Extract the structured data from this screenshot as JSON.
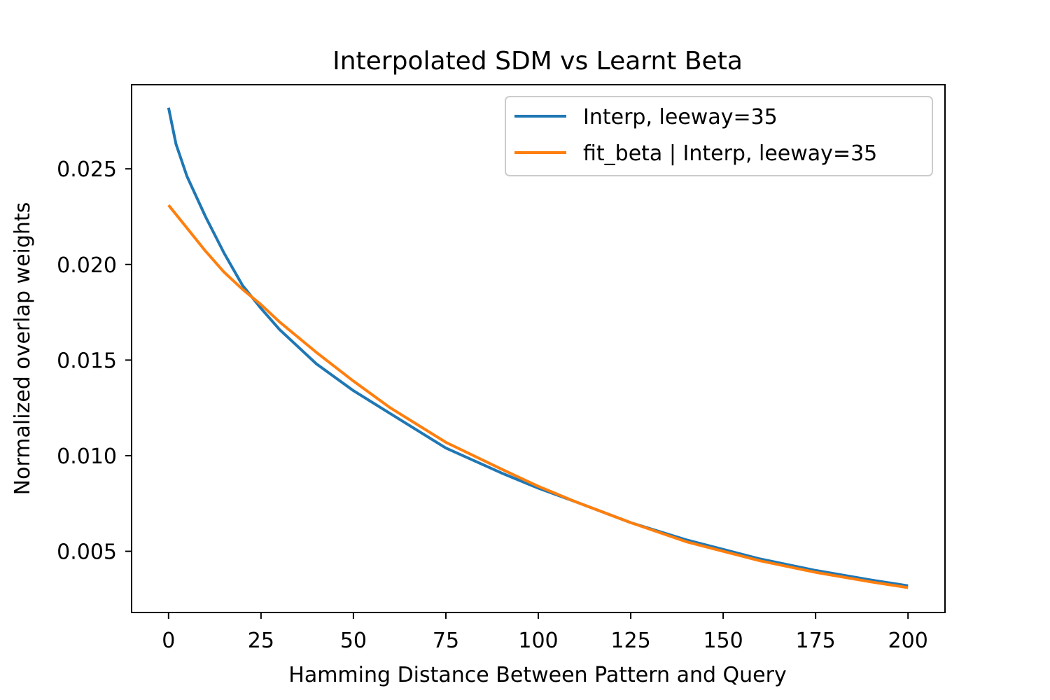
{
  "chart_data": {
    "type": "line",
    "title": "Interpolated SDM vs Learnt Beta",
    "xlabel": "Hamming Distance Between Pattern and Query",
    "ylabel": "Normalized overlap weights",
    "xlim": [
      -10,
      210
    ],
    "ylim": [
      0.0018,
      0.0294
    ],
    "xticks": [
      0,
      25,
      50,
      75,
      100,
      125,
      150,
      175,
      200
    ],
    "xtick_labels": [
      "0",
      "25",
      "50",
      "75",
      "100",
      "125",
      "150",
      "175",
      "200"
    ],
    "yticks": [
      0.005,
      0.01,
      0.015,
      0.02,
      0.025
    ],
    "ytick_labels": [
      "0.005",
      "0.010",
      "0.015",
      "0.020",
      "0.025"
    ],
    "grid": false,
    "legend_position": "upper right",
    "series": [
      {
        "name": "Interp, leeway=35",
        "color": "#1f77b4",
        "x": [
          0,
          2,
          5,
          10,
          15,
          20,
          25,
          30,
          40,
          50,
          60,
          75,
          90,
          100,
          110,
          125,
          140,
          150,
          160,
          175,
          190,
          200
        ],
        "y": [
          0.0282,
          0.0263,
          0.0246,
          0.0225,
          0.0206,
          0.0189,
          0.0177,
          0.0166,
          0.0148,
          0.0134,
          0.0122,
          0.0104,
          0.0091,
          0.0083,
          0.0076,
          0.0065,
          0.0056,
          0.0051,
          0.0046,
          0.004,
          0.0035,
          0.0032
        ]
      },
      {
        "name": "fit_beta | Interp, leeway=35",
        "color": "#ff7f0e",
        "x": [
          0,
          5,
          10,
          15,
          20,
          25,
          30,
          40,
          50,
          60,
          75,
          90,
          100,
          110,
          125,
          140,
          150,
          160,
          175,
          190,
          200
        ],
        "y": [
          0.0231,
          0.0219,
          0.0207,
          0.0196,
          0.0187,
          0.0179,
          0.017,
          0.0154,
          0.0139,
          0.0125,
          0.0107,
          0.0093,
          0.0084,
          0.0076,
          0.0065,
          0.0055,
          0.005,
          0.0045,
          0.0039,
          0.0034,
          0.0031
        ]
      }
    ]
  }
}
